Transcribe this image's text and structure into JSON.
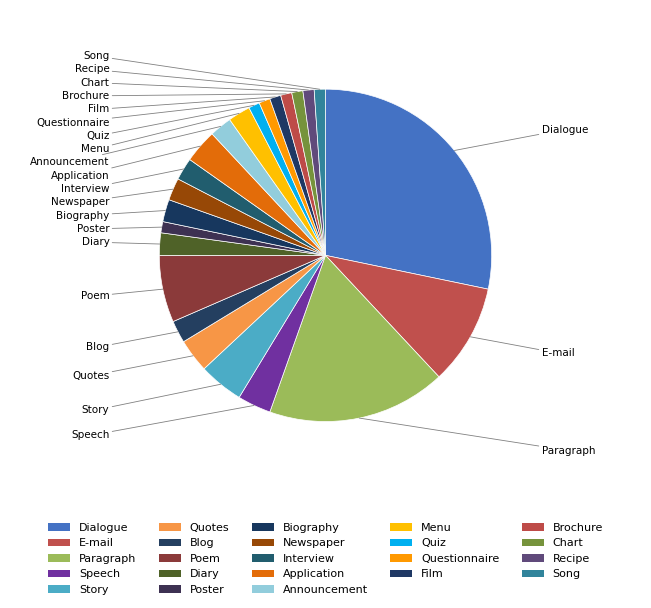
{
  "chart_data": {
    "type": "pie",
    "categories": [
      "Dialogue",
      "E-mail",
      "Paragraph",
      "Speech",
      "Story",
      "Quotes",
      "Blog",
      "Poem",
      "Diary",
      "Poster",
      "Biography",
      "Newspaper",
      "Interview",
      "Application",
      "Announcement",
      "Menu",
      "Quiz",
      "Questionnaire",
      "Film",
      "Brochure",
      "Chart",
      "Recipe",
      "Song"
    ],
    "values": [
      26,
      9,
      16,
      3,
      4,
      3,
      2,
      6,
      2,
      1,
      2,
      2,
      2,
      3,
      2,
      2,
      1,
      1,
      1,
      1,
      1,
      1,
      1
    ],
    "colors": [
      "#4472C4",
      "#C0504D",
      "#9BBB59",
      "#7030A0",
      "#4BACC6",
      "#F79646",
      "#243F60",
      "#8B3A3A",
      "#4F6228",
      "#3D3152",
      "#17375E",
      "#974806",
      "#215D6E",
      "#E36C09",
      "#92CDDC",
      "#FFC000",
      "#00B0F0",
      "#FF9900",
      "#1F3864",
      "#BE4B48",
      "#76933C",
      "#604A7B",
      "#31849B"
    ],
    "legend": "lower center"
  }
}
